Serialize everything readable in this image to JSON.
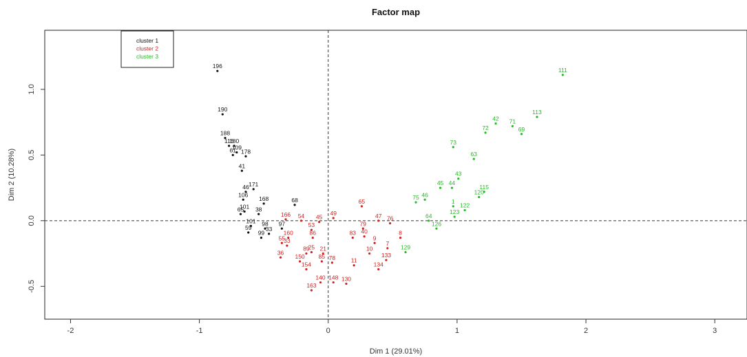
{
  "chart_data": {
    "type": "scatter",
    "title": "Factor map",
    "xlabel": "Dim 1 (29.01%)",
    "ylabel": "Dim 2 (10.28%)",
    "xlim": [
      -2.2,
      3.25
    ],
    "ylim": [
      -0.75,
      1.45
    ],
    "xticks": [
      "-2",
      "-1",
      "0",
      "1",
      "2",
      "3"
    ],
    "yticks": [
      "-0.5",
      "0.0",
      "0.5",
      "1.0"
    ],
    "reference_lines": {
      "x": 0,
      "y": 0,
      "style": "dashed"
    },
    "legend": {
      "position": "top-left",
      "entries": [
        "cluster 1",
        "cluster 2",
        "cluster 3"
      ]
    },
    "colors": {
      "cluster 1": "#111111",
      "cluster 2": "#cc2222",
      "cluster 3": "#22bb22"
    },
    "series": [
      {
        "name": "cluster 1",
        "points": [
          {
            "label": "196",
            "x": -0.86,
            "y": 1.14
          },
          {
            "label": "190",
            "x": -0.82,
            "y": 0.81
          },
          {
            "label": "188",
            "x": -0.8,
            "y": 0.63
          },
          {
            "label": "116",
            "x": -0.77,
            "y": 0.57
          },
          {
            "label": "180",
            "x": -0.73,
            "y": 0.57
          },
          {
            "label": "109",
            "x": -0.71,
            "y": 0.52
          },
          {
            "label": "61",
            "x": -0.74,
            "y": 0.5
          },
          {
            "label": "178",
            "x": -0.64,
            "y": 0.49
          },
          {
            "label": "41",
            "x": -0.67,
            "y": 0.38
          },
          {
            "label": "171",
            "x": -0.58,
            "y": 0.24
          },
          {
            "label": "46",
            "x": -0.64,
            "y": 0.22
          },
          {
            "label": "106",
            "x": -0.66,
            "y": 0.16
          },
          {
            "label": "168",
            "x": -0.5,
            "y": 0.13
          },
          {
            "label": "101",
            "x": -0.65,
            "y": 0.07
          },
          {
            "label": "65",
            "x": -0.68,
            "y": 0.05
          },
          {
            "label": "38",
            "x": -0.54,
            "y": 0.05
          },
          {
            "label": "68",
            "x": -0.26,
            "y": 0.12
          },
          {
            "label": "101",
            "x": -0.6,
            "y": -0.04
          },
          {
            "label": "59",
            "x": -0.62,
            "y": -0.09
          },
          {
            "label": "98",
            "x": -0.49,
            "y": -0.06
          },
          {
            "label": "33",
            "x": -0.46,
            "y": -0.1
          },
          {
            "label": "97",
            "x": -0.36,
            "y": -0.06
          },
          {
            "label": "99",
            "x": -0.52,
            "y": -0.13
          }
        ]
      },
      {
        "name": "cluster 2",
        "points": [
          {
            "label": "166",
            "x": -0.33,
            "y": 0.01
          },
          {
            "label": "54",
            "x": -0.21,
            "y": 0.0
          },
          {
            "label": "45",
            "x": -0.07,
            "y": -0.01
          },
          {
            "label": "49",
            "x": 0.04,
            "y": 0.02
          },
          {
            "label": "65",
            "x": 0.26,
            "y": 0.11
          },
          {
            "label": "47",
            "x": 0.39,
            "y": 0.0
          },
          {
            "label": "76",
            "x": 0.48,
            "y": -0.02
          },
          {
            "label": "53",
            "x": -0.13,
            "y": -0.07
          },
          {
            "label": "86",
            "x": -0.12,
            "y": -0.13
          },
          {
            "label": "160",
            "x": -0.31,
            "y": -0.13
          },
          {
            "label": "55",
            "x": -0.36,
            "y": -0.17
          },
          {
            "label": "33",
            "x": -0.32,
            "y": -0.19
          },
          {
            "label": "89",
            "x": -0.17,
            "y": -0.25
          },
          {
            "label": "25",
            "x": -0.13,
            "y": -0.24
          },
          {
            "label": "21",
            "x": -0.04,
            "y": -0.25
          },
          {
            "label": "36",
            "x": -0.37,
            "y": -0.28
          },
          {
            "label": "150",
            "x": -0.22,
            "y": -0.31
          },
          {
            "label": "85",
            "x": -0.05,
            "y": -0.31
          },
          {
            "label": "78",
            "x": 0.03,
            "y": -0.32
          },
          {
            "label": "154",
            "x": -0.17,
            "y": -0.37
          },
          {
            "label": "83",
            "x": 0.19,
            "y": -0.13
          },
          {
            "label": "79",
            "x": 0.27,
            "y": -0.06
          },
          {
            "label": "40",
            "x": 0.28,
            "y": -0.12
          },
          {
            "label": "8",
            "x": 0.56,
            "y": -0.13
          },
          {
            "label": "9",
            "x": 0.36,
            "y": -0.17
          },
          {
            "label": "7",
            "x": 0.46,
            "y": -0.21
          },
          {
            "label": "10",
            "x": 0.32,
            "y": -0.25
          },
          {
            "label": "133",
            "x": 0.45,
            "y": -0.3
          },
          {
            "label": "11",
            "x": 0.2,
            "y": -0.34
          },
          {
            "label": "134",
            "x": 0.39,
            "y": -0.37
          },
          {
            "label": "140",
            "x": -0.06,
            "y": -0.47
          },
          {
            "label": "148",
            "x": 0.04,
            "y": -0.47
          },
          {
            "label": "130",
            "x": 0.14,
            "y": -0.48
          },
          {
            "label": "163",
            "x": -0.13,
            "y": -0.53
          }
        ]
      },
      {
        "name": "cluster 3",
        "points": [
          {
            "label": "111",
            "x": 1.82,
            "y": 1.11
          },
          {
            "label": "113",
            "x": 1.62,
            "y": 0.79
          },
          {
            "label": "42",
            "x": 1.3,
            "y": 0.74
          },
          {
            "label": "71",
            "x": 1.43,
            "y": 0.72
          },
          {
            "label": "72",
            "x": 1.22,
            "y": 0.67
          },
          {
            "label": "69",
            "x": 1.5,
            "y": 0.66
          },
          {
            "label": "73",
            "x": 0.97,
            "y": 0.56
          },
          {
            "label": "63",
            "x": 1.13,
            "y": 0.47
          },
          {
            "label": "43",
            "x": 1.01,
            "y": 0.32
          },
          {
            "label": "45",
            "x": 0.87,
            "y": 0.25
          },
          {
            "label": "44",
            "x": 0.96,
            "y": 0.25
          },
          {
            "label": "115",
            "x": 1.21,
            "y": 0.22
          },
          {
            "label": "120",
            "x": 1.17,
            "y": 0.18
          },
          {
            "label": "75",
            "x": 0.68,
            "y": 0.14
          },
          {
            "label": "46",
            "x": 0.75,
            "y": 0.16
          },
          {
            "label": "1",
            "x": 0.97,
            "y": 0.11
          },
          {
            "label": "122",
            "x": 1.06,
            "y": 0.08
          },
          {
            "label": "123",
            "x": 0.98,
            "y": 0.03
          },
          {
            "label": "64",
            "x": 0.78,
            "y": 0.0
          },
          {
            "label": "126",
            "x": 0.84,
            "y": -0.06
          },
          {
            "label": "129",
            "x": 0.6,
            "y": -0.24
          }
        ]
      }
    ]
  }
}
